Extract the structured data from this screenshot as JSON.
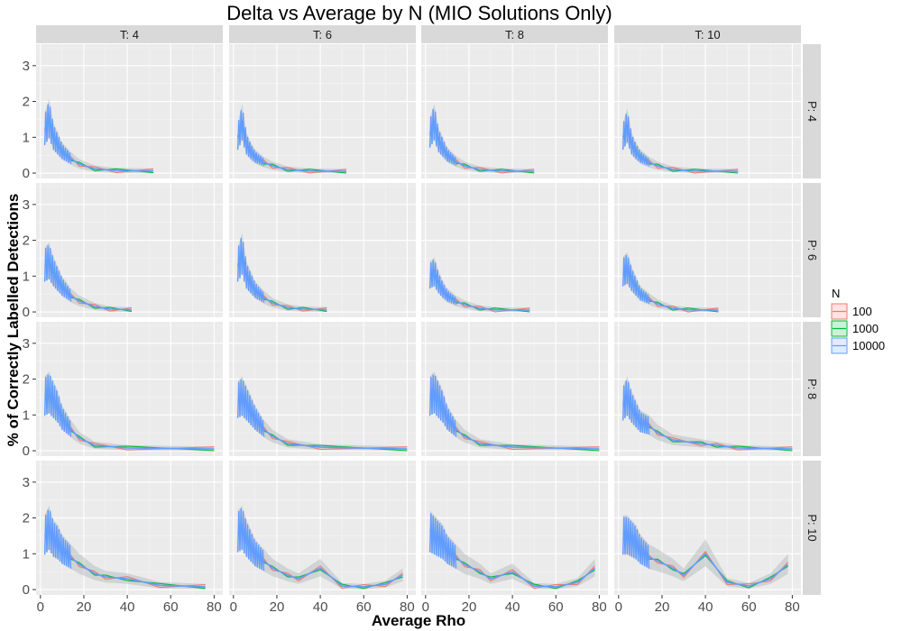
{
  "chart_data": {
    "type": "line",
    "title": "Delta vs Average by N (MIO Solutions Only)",
    "xlabel": "Average Rho",
    "ylabel": "% of Correctly Labelled Detections",
    "xlim": [
      -2,
      84
    ],
    "ylim": [
      -0.15,
      3.6
    ],
    "x_ticks": [
      0,
      20,
      40,
      60,
      80
    ],
    "y_ticks": [
      0,
      1,
      2,
      3
    ],
    "grid": true,
    "legend": {
      "title": "N",
      "position": "right",
      "entries": [
        {
          "name": "100",
          "color": "#F8766D"
        },
        {
          "name": "1000",
          "color": "#00BA38"
        },
        {
          "name": "10000",
          "color": "#619CFF"
        }
      ]
    },
    "column_facet_labels": [
      "T: 4",
      "T: 6",
      "T: 8",
      "T: 10"
    ],
    "row_facet_labels": [
      "P: 4",
      "P: 6",
      "P: 8",
      "P: 10"
    ],
    "facets": [
      {
        "row": "P: 4",
        "col": "T: 4",
        "x": [
          2,
          4,
          6,
          8,
          10,
          14,
          18,
          25,
          35,
          52
        ],
        "y": [
          1.2,
          1.5,
          1.0,
          0.8,
          0.6,
          0.4,
          0.25,
          0.12,
          0.07,
          0.06
        ]
      },
      {
        "row": "P: 4",
        "col": "T: 6",
        "x": [
          2,
          4,
          6,
          8,
          10,
          14,
          18,
          25,
          35,
          52
        ],
        "y": [
          1.0,
          1.4,
          0.8,
          0.6,
          0.45,
          0.3,
          0.2,
          0.1,
          0.06,
          0.05
        ]
      },
      {
        "row": "P: 4",
        "col": "T: 8",
        "x": [
          2,
          4,
          6,
          8,
          10,
          14,
          18,
          25,
          35,
          50
        ],
        "y": [
          1.1,
          1.4,
          0.9,
          0.7,
          0.5,
          0.32,
          0.2,
          0.1,
          0.06,
          0.05
        ]
      },
      {
        "row": "P: 4",
        "col": "T: 10",
        "x": [
          2,
          4,
          6,
          8,
          10,
          14,
          18,
          25,
          35,
          55
        ],
        "y": [
          1.0,
          1.3,
          0.8,
          0.6,
          0.45,
          0.3,
          0.2,
          0.1,
          0.06,
          0.05
        ]
      },
      {
        "row": "P: 6",
        "col": "T: 4",
        "x": [
          2,
          4,
          6,
          8,
          10,
          14,
          18,
          25,
          32,
          42
        ],
        "y": [
          1.3,
          1.4,
          1.1,
          0.9,
          0.7,
          0.45,
          0.3,
          0.15,
          0.08,
          0.06
        ]
      },
      {
        "row": "P: 6",
        "col": "T: 6",
        "x": [
          2,
          4,
          6,
          8,
          10,
          14,
          18,
          25,
          32,
          43
        ],
        "y": [
          1.3,
          1.6,
          1.0,
          0.8,
          0.6,
          0.4,
          0.25,
          0.12,
          0.08,
          0.06
        ]
      },
      {
        "row": "P: 6",
        "col": "T: 8",
        "x": [
          2,
          4,
          6,
          8,
          10,
          14,
          18,
          25,
          32,
          48
        ],
        "y": [
          1.0,
          1.1,
          0.8,
          0.6,
          0.45,
          0.3,
          0.2,
          0.1,
          0.06,
          0.05
        ]
      },
      {
        "row": "P: 6",
        "col": "T: 10",
        "x": [
          2,
          4,
          6,
          8,
          10,
          14,
          18,
          25,
          32,
          46
        ],
        "y": [
          1.1,
          1.2,
          0.9,
          0.7,
          0.5,
          0.35,
          0.22,
          0.1,
          0.06,
          0.05
        ]
      },
      {
        "row": "P: 8",
        "col": "T: 4",
        "x": [
          2,
          4,
          6,
          8,
          10,
          14,
          18,
          25,
          40,
          80
        ],
        "y": [
          1.5,
          1.6,
          1.4,
          1.2,
          0.9,
          0.6,
          0.35,
          0.15,
          0.08,
          0.05
        ]
      },
      {
        "row": "P: 8",
        "col": "T: 6",
        "x": [
          2,
          4,
          6,
          8,
          10,
          14,
          18,
          25,
          40,
          80
        ],
        "y": [
          1.4,
          1.5,
          1.3,
          1.1,
          0.9,
          0.6,
          0.4,
          0.2,
          0.1,
          0.05
        ]
      },
      {
        "row": "P: 8",
        "col": "T: 8",
        "x": [
          2,
          4,
          6,
          8,
          10,
          14,
          18,
          25,
          40,
          80
        ],
        "y": [
          1.5,
          1.6,
          1.4,
          1.2,
          0.9,
          0.6,
          0.4,
          0.2,
          0.1,
          0.05
        ]
      },
      {
        "row": "P: 8",
        "col": "T: 10",
        "x": [
          2,
          4,
          6,
          8,
          10,
          14,
          18,
          25,
          38,
          45,
          55,
          80
        ],
        "y": [
          1.3,
          1.5,
          1.2,
          1.0,
          0.8,
          0.7,
          0.5,
          0.3,
          0.2,
          0.15,
          0.08,
          0.05
        ]
      },
      {
        "row": "P: 10",
        "col": "T: 4",
        "x": [
          2,
          4,
          6,
          8,
          10,
          14,
          18,
          25,
          30,
          40,
          55,
          76
        ],
        "y": [
          1.5,
          1.7,
          1.4,
          1.3,
          1.1,
          0.9,
          0.7,
          0.45,
          0.35,
          0.3,
          0.12,
          0.08
        ]
      },
      {
        "row": "P: 10",
        "col": "T: 6",
        "x": [
          2,
          4,
          6,
          8,
          10,
          14,
          18,
          25,
          30,
          40,
          50,
          60,
          70,
          78
        ],
        "y": [
          1.6,
          1.7,
          1.4,
          1.2,
          1.0,
          0.8,
          0.6,
          0.4,
          0.3,
          0.6,
          0.1,
          0.08,
          0.15,
          0.4
        ]
      },
      {
        "row": "P: 10",
        "col": "T: 8",
        "x": [
          2,
          4,
          6,
          8,
          10,
          14,
          18,
          25,
          30,
          40,
          50,
          60,
          70,
          78
        ],
        "y": [
          1.6,
          1.5,
          1.4,
          1.3,
          1.1,
          0.9,
          0.7,
          0.5,
          0.3,
          0.5,
          0.1,
          0.08,
          0.2,
          0.6
        ]
      },
      {
        "row": "P: 10",
        "col": "T: 10",
        "x": [
          2,
          4,
          6,
          8,
          10,
          14,
          18,
          25,
          30,
          40,
          50,
          60,
          70,
          78
        ],
        "y": [
          1.5,
          1.5,
          1.4,
          1.3,
          1.1,
          0.9,
          0.8,
          0.6,
          0.4,
          1.0,
          0.2,
          0.1,
          0.3,
          0.7
        ]
      }
    ]
  }
}
